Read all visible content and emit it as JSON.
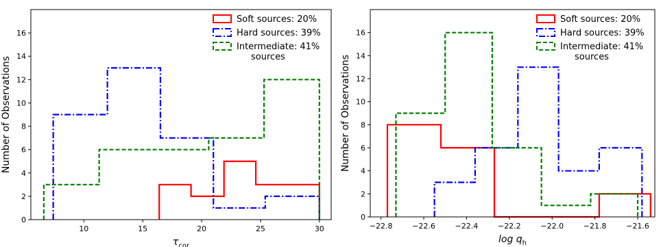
{
  "chart_data": [
    {
      "type": "histogram",
      "xlabel_main": "τ",
      "xlabel_sub": "cor",
      "ylabel": "Number of Observations",
      "xlim": [
        5.5,
        31
      ],
      "ylim": [
        0,
        18
      ],
      "xticks": [
        10,
        15,
        20,
        25,
        30
      ],
      "yticks": [
        0,
        2,
        4,
        6,
        8,
        10,
        12,
        14,
        16
      ],
      "xtick_labels": [
        "10",
        "15",
        "20",
        "25",
        "30"
      ],
      "ytick_labels": [
        "0",
        "2",
        "4",
        "6",
        "8",
        "10",
        "12",
        "14",
        "16"
      ],
      "legend_position": "top-right",
      "series": [
        {
          "name": "Soft sources: 20%",
          "style": "solid",
          "color": "#ff0000",
          "edges": [
            16.4,
            19.1,
            21.9,
            24.6,
            30.0
          ],
          "counts": [
            3,
            2,
            5,
            3
          ]
        },
        {
          "name": "Hard sources: 39%",
          "style": "dashdot",
          "color": "#0000ff",
          "edges": [
            7.4,
            12.0,
            16.5,
            21.0,
            25.4,
            30.0
          ],
          "counts": [
            9,
            13,
            7,
            1,
            2
          ]
        },
        {
          "name": "Intermediate: 41%",
          "name_line2": "sources",
          "style": "dashed",
          "color": "#008000",
          "edges": [
            6.6,
            11.3,
            16.0,
            20.6,
            25.3,
            30.0
          ],
          "counts": [
            3,
            6,
            6,
            7,
            12
          ]
        }
      ]
    },
    {
      "type": "histogram",
      "xlabel_main": "log q",
      "xlabel_sub": "h",
      "ylabel": "Number of Observations",
      "xlim": [
        -22.85,
        -21.52
      ],
      "ylim": [
        0,
        18
      ],
      "xticks": [
        -22.8,
        -22.6,
        -22.4,
        -22.2,
        -22.0,
        -21.8,
        -21.6
      ],
      "yticks": [
        0,
        2,
        4,
        6,
        8,
        10,
        12,
        14,
        16
      ],
      "xtick_labels": [
        "−22.8",
        "−22.6",
        "−22.4",
        "−22.2",
        "−22.0",
        "−21.8",
        "−21.6"
      ],
      "ytick_labels": [
        "0",
        "2",
        "4",
        "6",
        "8",
        "10",
        "12",
        "14",
        "16"
      ],
      "legend_position": "top-right",
      "series": [
        {
          "name": "Soft sources: 20%",
          "style": "solid",
          "color": "#ff0000",
          "edges": [
            -22.77,
            -22.52,
            -22.27,
            -22.03,
            -21.78,
            -21.54
          ],
          "counts": [
            8,
            6,
            0,
            0,
            2
          ]
        },
        {
          "name": "Hard sources: 39%",
          "style": "dashdot",
          "color": "#0000ff",
          "edges": [
            -22.55,
            -22.36,
            -22.16,
            -21.97,
            -21.78,
            -21.58
          ],
          "counts": [
            3,
            6,
            13,
            4,
            6
          ]
        },
        {
          "name": "Intermediate: 41%",
          "name_line2": "sources",
          "style": "dashed",
          "color": "#008000",
          "edges": [
            -22.73,
            -22.5,
            -22.28,
            -22.05,
            -21.82,
            -21.6
          ],
          "counts": [
            9,
            16,
            6,
            1,
            2
          ]
        }
      ]
    }
  ]
}
